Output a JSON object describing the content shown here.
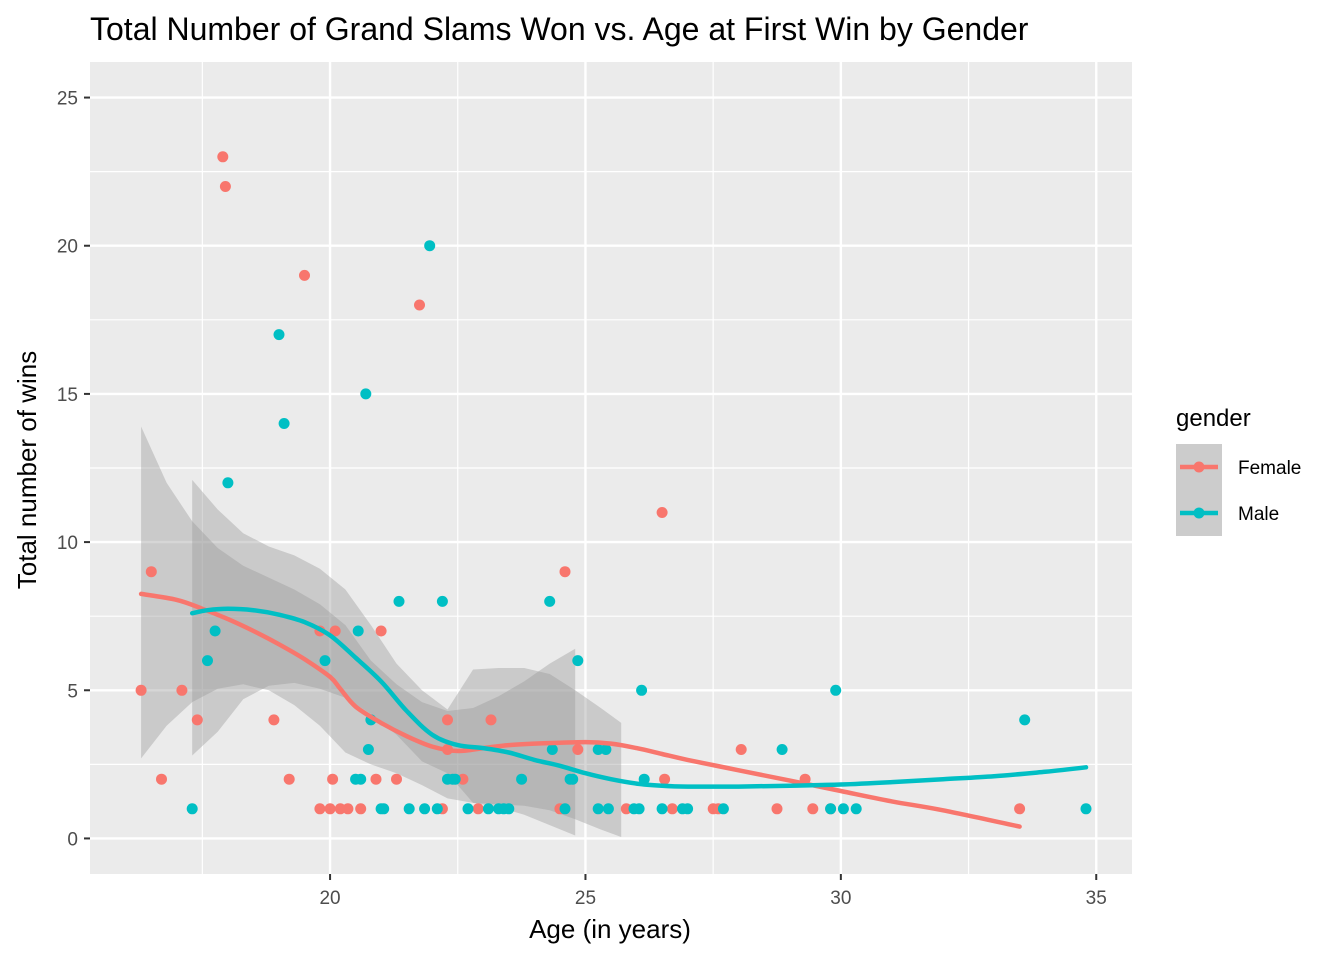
{
  "chart_data": {
    "type": "scatter",
    "title": "Total Number of Grand Slams Won vs. Age at First Win by Gender",
    "xlabel": "Age (in years)",
    "ylabel": "Total number of wins",
    "xlim": [
      15.3,
      35.7
    ],
    "ylim": [
      -1.2,
      26.2
    ],
    "xticks": [
      20,
      25,
      30,
      35
    ],
    "yticks": [
      0,
      5,
      10,
      15,
      20,
      25
    ],
    "grid": true,
    "background": "#ebebeb",
    "legend": {
      "title": "gender",
      "position": "right"
    },
    "series": [
      {
        "name": "Female",
        "color": "#f8766d",
        "points": [
          [
            16.3,
            5
          ],
          [
            16.5,
            9
          ],
          [
            16.7,
            2
          ],
          [
            17.1,
            5
          ],
          [
            17.4,
            4
          ],
          [
            17.9,
            23
          ],
          [
            17.95,
            22
          ],
          [
            18.9,
            4
          ],
          [
            19.2,
            2
          ],
          [
            19.5,
            19
          ],
          [
            19.8,
            1
          ],
          [
            19.8,
            7
          ],
          [
            20.0,
            1
          ],
          [
            20.05,
            2
          ],
          [
            20.1,
            7
          ],
          [
            20.2,
            1
          ],
          [
            20.35,
            1
          ],
          [
            20.6,
            1
          ],
          [
            20.9,
            2
          ],
          [
            21.0,
            7
          ],
          [
            21.3,
            2
          ],
          [
            21.75,
            18
          ],
          [
            22.2,
            1
          ],
          [
            22.3,
            3
          ],
          [
            22.3,
            4
          ],
          [
            22.6,
            2
          ],
          [
            22.9,
            1
          ],
          [
            23.15,
            4
          ],
          [
            24.5,
            1
          ],
          [
            24.6,
            9
          ],
          [
            24.85,
            3
          ],
          [
            25.8,
            1
          ],
          [
            26.5,
            11
          ],
          [
            26.55,
            2
          ],
          [
            26.7,
            1
          ],
          [
            27.5,
            1
          ],
          [
            27.6,
            1
          ],
          [
            28.05,
            3
          ],
          [
            28.75,
            1
          ],
          [
            29.3,
            2
          ],
          [
            29.45,
            1
          ],
          [
            29.8,
            1
          ],
          [
            33.5,
            1
          ]
        ],
        "smooth": [
          [
            16.3,
            8.25
          ],
          [
            17.0,
            8.05
          ],
          [
            17.5,
            7.75
          ],
          [
            18.0,
            7.4
          ],
          [
            18.5,
            7.0
          ],
          [
            19.0,
            6.55
          ],
          [
            19.5,
            6.05
          ],
          [
            20.0,
            5.45
          ],
          [
            20.2,
            5.05
          ],
          [
            20.5,
            4.45
          ],
          [
            21.0,
            3.9
          ],
          [
            21.5,
            3.45
          ],
          [
            22.0,
            3.1
          ],
          [
            22.5,
            2.95
          ],
          [
            23.0,
            3.05
          ],
          [
            23.5,
            3.15
          ],
          [
            24.0,
            3.2
          ],
          [
            25.0,
            3.25
          ],
          [
            25.5,
            3.2
          ],
          [
            26.0,
            3.05
          ],
          [
            26.5,
            2.85
          ],
          [
            27.0,
            2.65
          ],
          [
            28.0,
            2.3
          ],
          [
            29.0,
            1.95
          ],
          [
            30.0,
            1.6
          ],
          [
            31.0,
            1.25
          ],
          [
            32.0,
            0.95
          ],
          [
            33.5,
            0.4
          ]
        ],
        "ci_upper": [
          [
            16.3,
            13.9
          ],
          [
            16.8,
            12.0
          ],
          [
            17.3,
            10.7
          ],
          [
            17.8,
            9.8
          ],
          [
            18.3,
            9.2
          ],
          [
            18.8,
            8.8
          ],
          [
            19.3,
            8.4
          ],
          [
            19.8,
            7.9
          ],
          [
            20.3,
            7.2
          ],
          [
            20.8,
            6.0
          ],
          [
            21.3,
            5.2
          ],
          [
            21.8,
            4.6
          ],
          [
            22.3,
            4.3
          ],
          [
            22.8,
            4.4
          ],
          [
            23.3,
            4.8
          ],
          [
            23.8,
            5.3
          ],
          [
            24.3,
            5.9
          ],
          [
            24.8,
            6.4
          ]
        ],
        "ci_lower": [
          [
            24.8,
            0.1
          ],
          [
            24.3,
            0.45
          ],
          [
            23.8,
            0.8
          ],
          [
            23.3,
            1.05
          ],
          [
            22.8,
            1.2
          ],
          [
            22.3,
            1.35
          ],
          [
            21.8,
            1.8
          ],
          [
            21.3,
            2.2
          ],
          [
            20.8,
            2.5
          ],
          [
            20.3,
            2.9
          ],
          [
            19.8,
            3.8
          ],
          [
            19.3,
            4.5
          ],
          [
            18.8,
            5.0
          ],
          [
            18.3,
            5.2
          ],
          [
            17.8,
            5.05
          ],
          [
            17.3,
            4.6
          ],
          [
            16.8,
            3.8
          ],
          [
            16.3,
            2.7
          ]
        ]
      },
      {
        "name": "Male",
        "color": "#00bfc4",
        "points": [
          [
            17.3,
            1
          ],
          [
            17.6,
            6
          ],
          [
            17.75,
            7
          ],
          [
            18.0,
            12
          ],
          [
            19.0,
            17
          ],
          [
            19.1,
            14
          ],
          [
            19.9,
            6
          ],
          [
            20.5,
            2
          ],
          [
            20.55,
            7
          ],
          [
            20.6,
            2
          ],
          [
            20.7,
            15
          ],
          [
            20.75,
            3
          ],
          [
            20.8,
            4
          ],
          [
            21.0,
            1
          ],
          [
            21.05,
            1
          ],
          [
            21.35,
            8
          ],
          [
            21.55,
            1
          ],
          [
            21.85,
            1
          ],
          [
            21.95,
            20
          ],
          [
            22.1,
            1
          ],
          [
            22.2,
            8
          ],
          [
            22.3,
            2
          ],
          [
            22.4,
            2
          ],
          [
            22.45,
            2
          ],
          [
            22.7,
            1
          ],
          [
            23.1,
            1
          ],
          [
            23.3,
            1
          ],
          [
            23.4,
            1
          ],
          [
            23.5,
            1
          ],
          [
            23.75,
            2
          ],
          [
            24.3,
            8
          ],
          [
            24.35,
            3
          ],
          [
            24.6,
            1
          ],
          [
            24.7,
            2
          ],
          [
            24.75,
            2
          ],
          [
            24.85,
            6
          ],
          [
            25.25,
            1
          ],
          [
            25.25,
            3
          ],
          [
            25.4,
            3
          ],
          [
            25.45,
            1
          ],
          [
            25.95,
            1
          ],
          [
            26.05,
            1
          ],
          [
            26.1,
            5
          ],
          [
            26.15,
            2
          ],
          [
            26.5,
            1
          ],
          [
            26.9,
            1
          ],
          [
            27.0,
            1
          ],
          [
            27.7,
            1
          ],
          [
            28.85,
            3
          ],
          [
            29.8,
            1
          ],
          [
            29.9,
            5
          ],
          [
            30.05,
            1
          ],
          [
            30.3,
            1
          ],
          [
            33.6,
            4
          ],
          [
            34.8,
            1
          ]
        ],
        "smooth": [
          [
            17.3,
            7.6
          ],
          [
            17.6,
            7.7
          ],
          [
            18.0,
            7.75
          ],
          [
            18.5,
            7.7
          ],
          [
            19.0,
            7.55
          ],
          [
            19.5,
            7.3
          ],
          [
            20.0,
            6.85
          ],
          [
            20.5,
            6.1
          ],
          [
            21.0,
            5.3
          ],
          [
            21.5,
            4.3
          ],
          [
            22.0,
            3.5
          ],
          [
            22.5,
            3.15
          ],
          [
            23.0,
            3.05
          ],
          [
            23.5,
            2.9
          ],
          [
            24.0,
            2.65
          ],
          [
            24.5,
            2.45
          ],
          [
            25.0,
            2.2
          ],
          [
            25.5,
            2.0
          ],
          [
            26.0,
            1.85
          ],
          [
            26.5,
            1.78
          ],
          [
            27.0,
            1.75
          ],
          [
            28.0,
            1.75
          ],
          [
            29.0,
            1.78
          ],
          [
            30.0,
            1.82
          ],
          [
            31.0,
            1.9
          ],
          [
            32.0,
            2.0
          ],
          [
            33.0,
            2.1
          ],
          [
            34.0,
            2.25
          ],
          [
            34.8,
            2.4
          ]
        ],
        "ci_upper": [
          [
            17.3,
            12.1
          ],
          [
            17.8,
            11.1
          ],
          [
            18.3,
            10.3
          ],
          [
            18.8,
            9.85
          ],
          [
            19.3,
            9.55
          ],
          [
            19.8,
            9.1
          ],
          [
            20.3,
            8.4
          ],
          [
            20.8,
            7.2
          ],
          [
            21.3,
            5.9
          ],
          [
            21.8,
            5.0
          ],
          [
            22.3,
            4.35
          ],
          [
            22.8,
            5.7
          ],
          [
            23.3,
            5.75
          ],
          [
            23.8,
            5.75
          ],
          [
            24.3,
            5.55
          ],
          [
            24.8,
            5.0
          ],
          [
            25.3,
            4.4
          ],
          [
            25.7,
            3.9
          ]
        ],
        "ci_lower": [
          [
            25.7,
            0.05
          ],
          [
            25.3,
            0.3
          ],
          [
            24.8,
            0.65
          ],
          [
            24.3,
            0.95
          ],
          [
            23.8,
            1.1
          ],
          [
            23.3,
            1.15
          ],
          [
            22.8,
            1.2
          ],
          [
            22.3,
            2.2
          ],
          [
            21.8,
            2.6
          ],
          [
            21.3,
            3.5
          ],
          [
            20.8,
            4.2
          ],
          [
            20.3,
            4.75
          ],
          [
            19.8,
            5.05
          ],
          [
            19.3,
            5.25
          ],
          [
            18.8,
            5.15
          ],
          [
            18.3,
            4.7
          ],
          [
            17.8,
            3.6
          ],
          [
            17.3,
            2.8
          ]
        ]
      }
    ]
  }
}
